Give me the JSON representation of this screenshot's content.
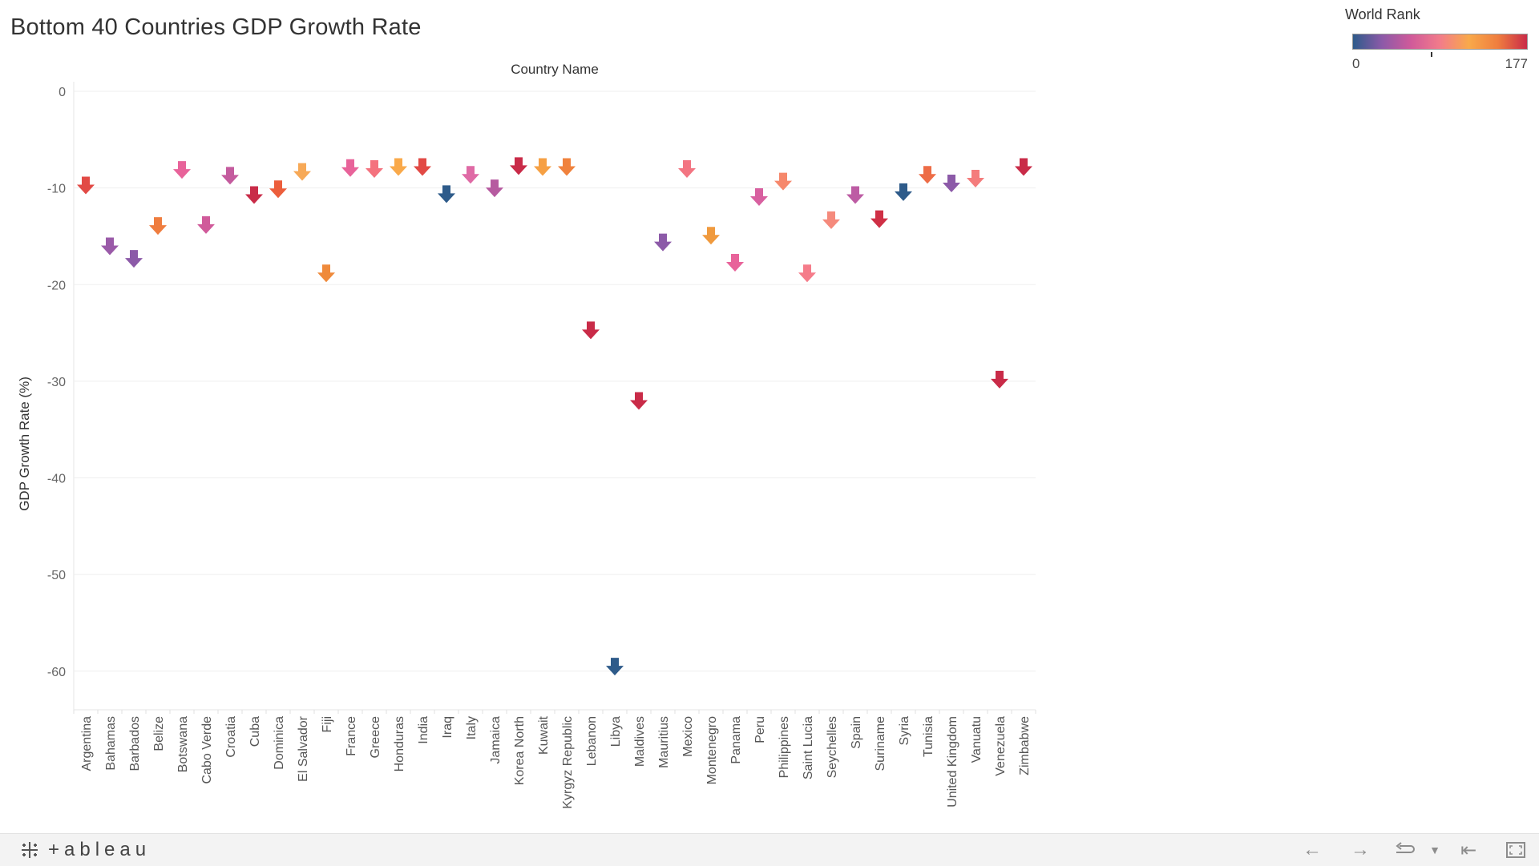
{
  "title": "Bottom 40 Countries GDP Growth Rate",
  "legend": {
    "title": "World Rank",
    "min_label": "0",
    "max_label": "177",
    "colors": [
      "#2e5b8a",
      "#8c5aa8",
      "#d05a9a",
      "#f27c8a",
      "#f9a94a",
      "#ef7d3f",
      "#c92b48"
    ]
  },
  "footer": {
    "logo_text": "+ableau",
    "icons": [
      "undo-icon",
      "redo-icon",
      "revert-icon",
      "dropdown-icon",
      "reset-icon",
      "fullscreen-icon"
    ]
  },
  "chart_data": {
    "type": "scatter",
    "marker": "down-arrow",
    "title": "Bottom 40 Countries GDP Growth Rate",
    "column_header": "Country Name",
    "ylabel": "GDP Growth Rate (%)",
    "xlabel": "",
    "ylim": [
      -64,
      1
    ],
    "yticks": [
      0,
      -10,
      -20,
      -30,
      -40,
      -50,
      -60
    ],
    "grid": true,
    "legend_placement": "top-right",
    "color_field": "World Rank",
    "color_range": [
      0,
      177
    ],
    "categories": [
      "Argentina",
      "Bahamas",
      "Barbados",
      "Belize",
      "Botswana",
      "Cabo Verde",
      "Croatia",
      "Cuba",
      "Dominica",
      "El Salvador",
      "Fiji",
      "France",
      "Greece",
      "Honduras",
      "India",
      "Iraq",
      "Italy",
      "Jamaica",
      "Korea North",
      "Kuwait",
      "Kyrgyz Republic",
      "Lebanon",
      "Libya",
      "Maldives",
      "Mauritius",
      "Mexico",
      "Montenegro",
      "Panama",
      "Peru",
      "Philippines",
      "Saint Lucia",
      "Seychelles",
      "Spain",
      "Suriname",
      "Syria",
      "Tunisia",
      "United Kingdom",
      "Vanuatu",
      "Venezuela",
      "Zimbabwe"
    ],
    "values": [
      -9.9,
      -16.2,
      -17.5,
      -14.1,
      -8.3,
      -14.0,
      -8.9,
      -10.9,
      -10.3,
      -8.5,
      -19.0,
      -8.1,
      -8.2,
      -8.0,
      -8.0,
      -10.8,
      -8.8,
      -10.2,
      -7.9,
      -8.0,
      -8.0,
      -24.9,
      -59.7,
      -32.2,
      -15.8,
      -8.2,
      -15.1,
      -17.9,
      -11.1,
      -9.5,
      -19.0,
      -13.5,
      -10.9,
      -13.4,
      -10.6,
      -8.8,
      -9.7,
      -9.2,
      -30.0,
      -8.0
    ],
    "colors": [
      "#e24a45",
      "#9a5aa8",
      "#8c5aa8",
      "#ef7d3f",
      "#e8639a",
      "#d05a9a",
      "#c45b9e",
      "#c92b48",
      "#ec5e3c",
      "#f7a957",
      "#ef8a3b",
      "#e8639a",
      "#f4727e",
      "#f9a94a",
      "#e24a45",
      "#2e5b8a",
      "#df6aa5",
      "#b65aa0",
      "#c92b48",
      "#f6a044",
      "#f0823d",
      "#c92b48",
      "#2e5b8a",
      "#c92b48",
      "#8c5aa8",
      "#f37582",
      "#f09a3e",
      "#e8639a",
      "#d860a0",
      "#f6886c",
      "#f57c8a",
      "#f58a7c",
      "#bd5ca4",
      "#cf2f45",
      "#2e5b8a",
      "#ed6c46",
      "#8c5aa8",
      "#f47c7c",
      "#c92b48",
      "#c92b48"
    ]
  }
}
